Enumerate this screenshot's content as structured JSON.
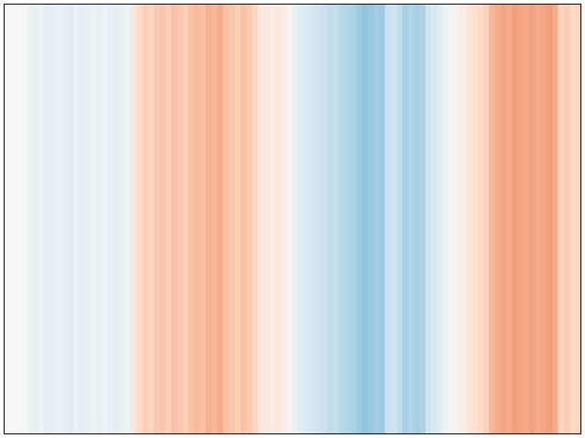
{
  "chart_data": {
    "type": "stripes",
    "values": [
      0,
      0.01,
      -0.01,
      0.01,
      -0.06,
      -0.08,
      -0.05,
      -0.1,
      -0.08,
      -0.06,
      -0.09,
      -0.11,
      -0.07,
      -0.1,
      -0.08,
      -0.05,
      -0.09,
      -0.06,
      -0.08,
      -0.1,
      -0.07,
      -0.05,
      0.12,
      0.2,
      0.24,
      0.22,
      0.26,
      0.28,
      0.24,
      0.3,
      0.27,
      0.25,
      0.29,
      0.32,
      0.3,
      0.35,
      0.33,
      0.37,
      0.3,
      0.28,
      0.25,
      0.3,
      0.26,
      0.22,
      0.12,
      0.1,
      0.08,
      0.11,
      0.08,
      0.03,
      -0.08,
      -0.12,
      -0.15,
      -0.18,
      -0.2,
      -0.22,
      -0.25,
      -0.24,
      -0.28,
      -0.3,
      -0.32,
      -0.36,
      -0.4,
      -0.38,
      -0.35,
      -0.37,
      -0.22,
      -0.2,
      -0.24,
      -0.33,
      -0.3,
      -0.34,
      -0.31,
      -0.2,
      -0.16,
      -0.12,
      -0.06,
      -0.02,
      0.04,
      0.08,
      0.12,
      0.16,
      0.2,
      0.24,
      0.33,
      0.37,
      0.4,
      0.38,
      0.42,
      0.4,
      0.39,
      0.41,
      0.38,
      0.4,
      0.42,
      0.37,
      0.22,
      0.25,
      0.2,
      0.22
    ],
    "clim": [
      -1,
      1
    ],
    "colormap": [
      "#053061",
      "#2166ac",
      "#4393c3",
      "#92c5de",
      "#d1e5f0",
      "#f7f7f7",
      "#fddbc7",
      "#f4a582",
      "#d6604d",
      "#b2182b",
      "#67001f"
    ]
  }
}
